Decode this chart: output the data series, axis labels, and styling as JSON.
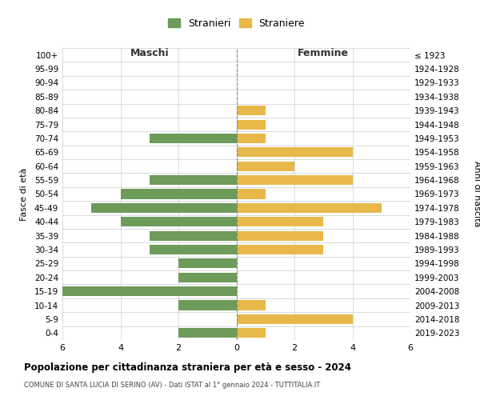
{
  "age_groups": [
    "100+",
    "95-99",
    "90-94",
    "85-89",
    "80-84",
    "75-79",
    "70-74",
    "65-69",
    "60-64",
    "55-59",
    "50-54",
    "45-49",
    "40-44",
    "35-39",
    "30-34",
    "25-29",
    "20-24",
    "15-19",
    "10-14",
    "5-9",
    "0-4"
  ],
  "birth_years": [
    "≤ 1923",
    "1924-1928",
    "1929-1933",
    "1934-1938",
    "1939-1943",
    "1944-1948",
    "1949-1953",
    "1954-1958",
    "1959-1963",
    "1964-1968",
    "1969-1973",
    "1974-1978",
    "1979-1983",
    "1984-1988",
    "1989-1993",
    "1994-1998",
    "1999-2003",
    "2004-2008",
    "2009-2013",
    "2014-2018",
    "2019-2023"
  ],
  "maschi": [
    0,
    0,
    0,
    0,
    0,
    0,
    3,
    0,
    0,
    3,
    4,
    5,
    4,
    3,
    3,
    2,
    2,
    6,
    2,
    0,
    2
  ],
  "femmine": [
    0,
    0,
    0,
    0,
    1,
    1,
    1,
    4,
    2,
    4,
    1,
    5,
    3,
    3,
    3,
    0,
    0,
    0,
    1,
    4,
    1
  ],
  "male_color": "#6d9b5a",
  "female_color": "#e8b84b",
  "grid_color": "#cccccc",
  "title": "Popolazione per cittadinanza straniera per età e sesso - 2024",
  "subtitle": "COMUNE DI SANTA LUCIA DI SERINO (AV) - Dati ISTAT al 1° gennaio 2024 - TUTTITALIA.IT",
  "ylabel_left": "Fasce di età",
  "ylabel_right": "Anni di nascita",
  "legend_male": "Stranieri",
  "legend_female": "Straniere",
  "xlim": 6,
  "background_color": "#ffffff"
}
